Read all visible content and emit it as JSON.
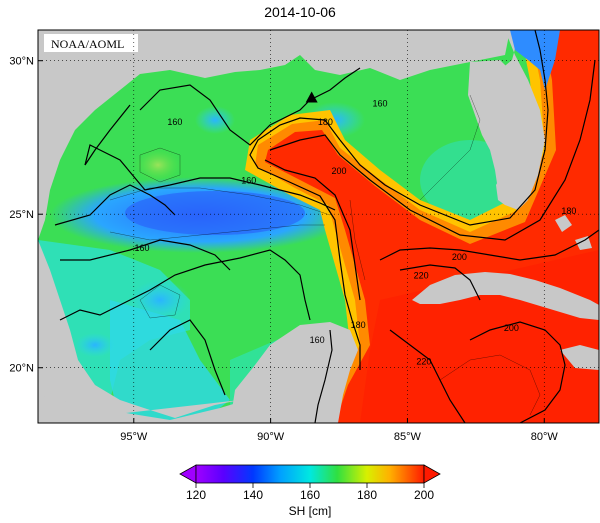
{
  "title": "2014-10-06",
  "credit": "NOAA/AOML",
  "map": {
    "lon_range": [
      -98.5,
      -78
    ],
    "lat_range": [
      18.2,
      31
    ],
    "x_ticks": [
      {
        "lon": -95,
        "label": "95°W"
      },
      {
        "lon": -90,
        "label": "90°W"
      },
      {
        "lon": -85,
        "label": "85°W"
      },
      {
        "lon": -80,
        "label": "80°W"
      }
    ],
    "y_ticks": [
      {
        "lat": 20,
        "label": "20°N"
      },
      {
        "lat": 25,
        "label": "25°N"
      },
      {
        "lat": 30,
        "label": "30°N"
      }
    ],
    "contour_labels": [
      {
        "lon": -93.5,
        "lat": 28.0,
        "text": "160"
      },
      {
        "lon": -88.0,
        "lat": 28.0,
        "text": "180"
      },
      {
        "lon": -86.0,
        "lat": 28.6,
        "text": "160"
      },
      {
        "lon": -87.5,
        "lat": 26.4,
        "text": "200"
      },
      {
        "lon": -90.8,
        "lat": 26.1,
        "text": "160"
      },
      {
        "lon": -94.7,
        "lat": 23.9,
        "text": "160"
      },
      {
        "lon": -88.3,
        "lat": 20.9,
        "text": "160"
      },
      {
        "lon": -86.8,
        "lat": 21.4,
        "text": "180"
      },
      {
        "lon": -79.1,
        "lat": 25.1,
        "text": "180"
      },
      {
        "lon": -83.1,
        "lat": 23.6,
        "text": "200"
      },
      {
        "lon": -84.5,
        "lat": 23.0,
        "text": "220"
      },
      {
        "lon": -81.2,
        "lat": 21.3,
        "text": "200"
      },
      {
        "lon": -84.4,
        "lat": 20.2,
        "text": "220"
      }
    ],
    "marker": {
      "lon": -88.5,
      "lat": 28.8,
      "symbol": "triangle"
    }
  },
  "colorbar": {
    "ticks": [
      120,
      140,
      160,
      180,
      200
    ],
    "label": "SH [cm]",
    "min": 120,
    "max": 200,
    "extend": "both"
  },
  "colors": {
    "land": "#c8c8c8",
    "ocean_low": "#2e7bff",
    "ocean_mid": "#31e24a",
    "ocean_high": "#ff2a00"
  }
}
